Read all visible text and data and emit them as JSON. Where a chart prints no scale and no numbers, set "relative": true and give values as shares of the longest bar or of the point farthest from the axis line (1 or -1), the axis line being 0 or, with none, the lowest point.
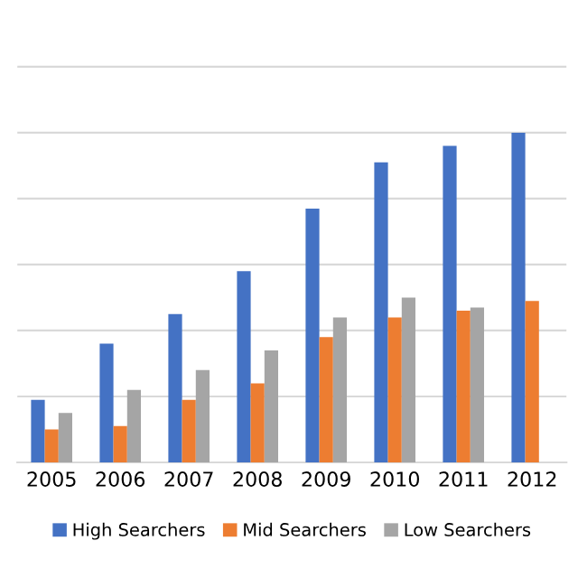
{
  "chart_data": {
    "type": "bar",
    "relative": true,
    "categories": [
      "2005",
      "2006",
      "2007",
      "2008",
      "2009",
      "2010",
      "2011",
      "2012"
    ],
    "series": [
      {
        "name": "High Searchers",
        "color": "#4472c4",
        "values": [
          0.19,
          0.36,
          0.45,
          0.58,
          0.77,
          0.91,
          0.96,
          1
        ]
      },
      {
        "name": "Mid Searchers",
        "color": "#ed7d31",
        "values": [
          0.1,
          0.11,
          0.19,
          0.24,
          0.38,
          0.44,
          0.46,
          0.49
        ]
      },
      {
        "name": "Low Searchers",
        "color": "#a5a5a5",
        "values": [
          0.15,
          0.22,
          0.28,
          0.34,
          0.44,
          0.5,
          0.47,
          null
        ]
      }
    ],
    "grid": "y",
    "legend": "bottom"
  }
}
